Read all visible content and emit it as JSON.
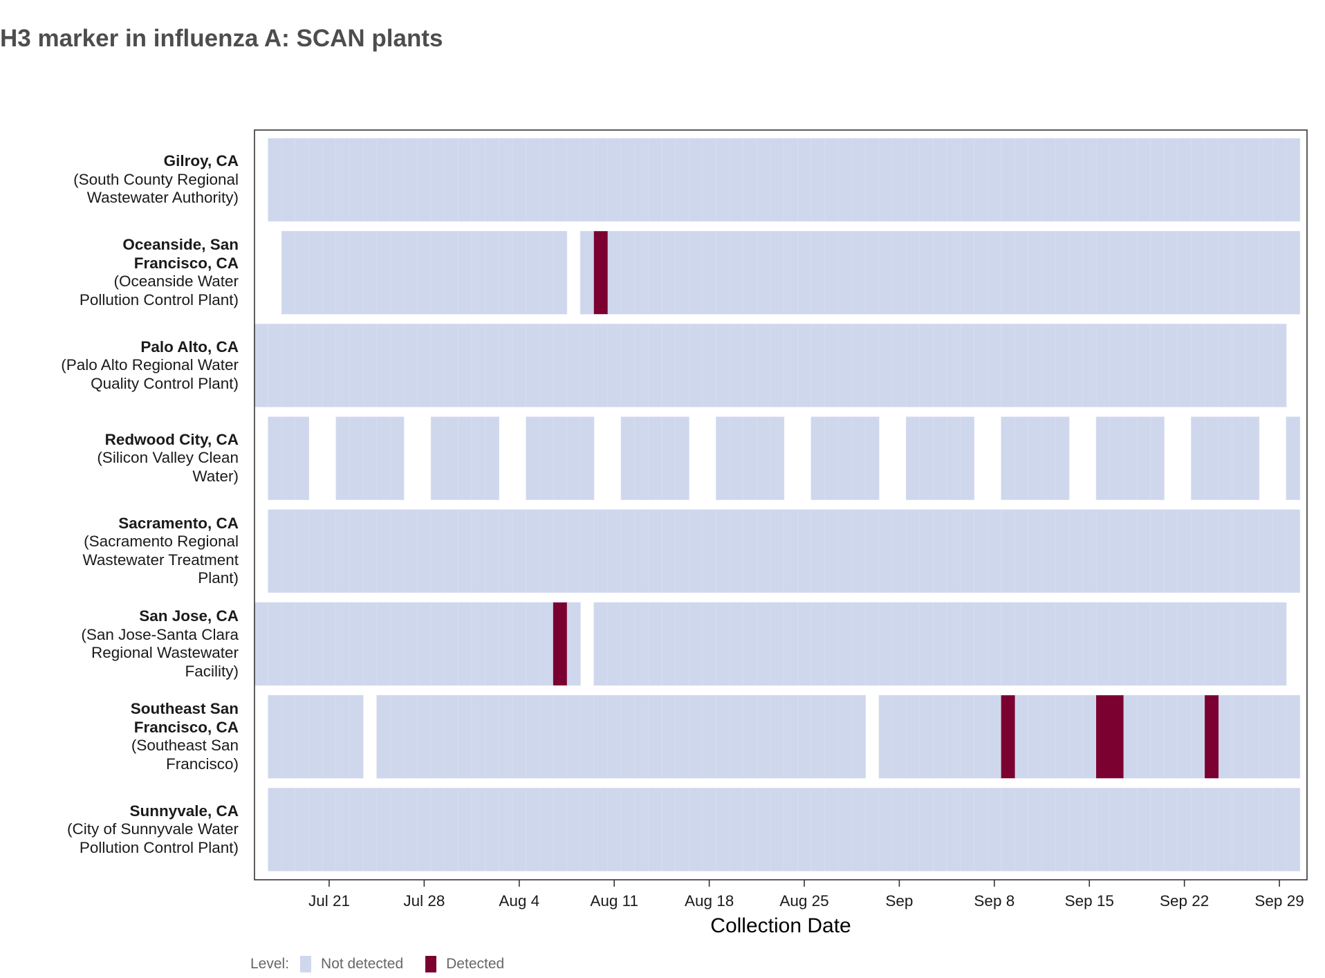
{
  "chart_data": {
    "type": "heatmap",
    "title": "H3 marker in influenza A: SCAN plants",
    "xlabel": "Collection Date",
    "ylabel": "",
    "x_range": [
      "2024-07-16",
      "2024-10-01"
    ],
    "x_ticks": [
      {
        "date": "2024-07-21",
        "label": "Jul 21"
      },
      {
        "date": "2024-07-28",
        "label": "Jul 28"
      },
      {
        "date": "2024-08-04",
        "label": "Aug 4"
      },
      {
        "date": "2024-08-11",
        "label": "Aug 11"
      },
      {
        "date": "2024-08-18",
        "label": "Aug 18"
      },
      {
        "date": "2024-08-25",
        "label": "Aug 25"
      },
      {
        "date": "2024-09-01",
        "label": "Sep"
      },
      {
        "date": "2024-09-08",
        "label": "Sep 8"
      },
      {
        "date": "2024-09-15",
        "label": "Sep 15"
      },
      {
        "date": "2024-09-22",
        "label": "Sep 22"
      },
      {
        "date": "2024-09-29",
        "label": "Sep 29"
      }
    ],
    "legend": {
      "title": "Level:",
      "position": "bottom-left",
      "items": [
        {
          "label": "Not detected",
          "color": "#cfd7ed"
        },
        {
          "label": "Detected",
          "color": "#7b0230"
        }
      ]
    },
    "colors": {
      "not_detected": "#cfd7ed",
      "detected": "#7b0230"
    },
    "sites": [
      {
        "name": "Gilroy, CA",
        "plant_lines": [
          "(South County Regional",
          "Wastewater Authority)"
        ],
        "segments": [
          {
            "start": "2024-07-17",
            "end": "2024-09-30"
          }
        ],
        "detected_dates": []
      },
      {
        "name_lines": [
          "Oceanside, San",
          "Francisco, CA"
        ],
        "plant_lines": [
          "(Oceanside Water",
          "Pollution Control Plant)"
        ],
        "segments": [
          {
            "start": "2024-07-18",
            "end": "2024-08-07"
          },
          {
            "start": "2024-08-09",
            "end": "2024-09-30"
          }
        ],
        "detected_dates": [
          "2024-08-10"
        ]
      },
      {
        "name": "Palo Alto, CA",
        "plant_lines": [
          "(Palo Alto Regional Water",
          "Quality Control Plant)"
        ],
        "segments": [
          {
            "start": "2024-07-16",
            "end": "2024-09-29"
          }
        ],
        "detected_dates": []
      },
      {
        "name": "Redwood City, CA",
        "plant_lines": [
          "(Silicon Valley Clean",
          "Water)"
        ],
        "segments": [
          {
            "start": "2024-07-17",
            "end": "2024-07-19"
          },
          {
            "start": "2024-07-22",
            "end": "2024-07-26"
          },
          {
            "start": "2024-07-29",
            "end": "2024-08-02"
          },
          {
            "start": "2024-08-05",
            "end": "2024-08-09"
          },
          {
            "start": "2024-08-12",
            "end": "2024-08-16"
          },
          {
            "start": "2024-08-19",
            "end": "2024-08-23"
          },
          {
            "start": "2024-08-26",
            "end": "2024-08-30"
          },
          {
            "start": "2024-09-02",
            "end": "2024-09-06"
          },
          {
            "start": "2024-09-09",
            "end": "2024-09-13"
          },
          {
            "start": "2024-09-16",
            "end": "2024-09-20"
          },
          {
            "start": "2024-09-23",
            "end": "2024-09-27"
          },
          {
            "start": "2024-09-30",
            "end": "2024-09-30"
          }
        ],
        "detected_dates": []
      },
      {
        "name": "Sacramento, CA",
        "plant_lines": [
          "(Sacramento Regional",
          "Wastewater Treatment",
          "Plant)"
        ],
        "segments": [
          {
            "start": "2024-07-17",
            "end": "2024-09-30"
          }
        ],
        "detected_dates": []
      },
      {
        "name": "San Jose, CA",
        "plant_lines": [
          "(San Jose-Santa Clara",
          "Regional Wastewater",
          "Facility)"
        ],
        "segments": [
          {
            "start": "2024-07-16",
            "end": "2024-08-08"
          },
          {
            "start": "2024-08-10",
            "end": "2024-09-29"
          }
        ],
        "detected_dates": [
          "2024-08-07"
        ]
      },
      {
        "name_lines": [
          "Southeast San",
          "Francisco, CA"
        ],
        "plant_lines": [
          "(Southeast San",
          "Francisco)"
        ],
        "segments": [
          {
            "start": "2024-07-17",
            "end": "2024-07-23"
          },
          {
            "start": "2024-07-25",
            "end": "2024-08-29"
          },
          {
            "start": "2024-08-31",
            "end": "2024-09-30"
          }
        ],
        "detected_dates": [
          "2024-09-09",
          "2024-09-16",
          "2024-09-17",
          "2024-09-24"
        ]
      },
      {
        "name": "Sunnyvale, CA",
        "plant_lines": [
          "(City of Sunnyvale Water",
          "Pollution Control Plant)"
        ],
        "segments": [
          {
            "start": "2024-07-17",
            "end": "2024-09-30"
          }
        ],
        "detected_dates": []
      }
    ]
  }
}
